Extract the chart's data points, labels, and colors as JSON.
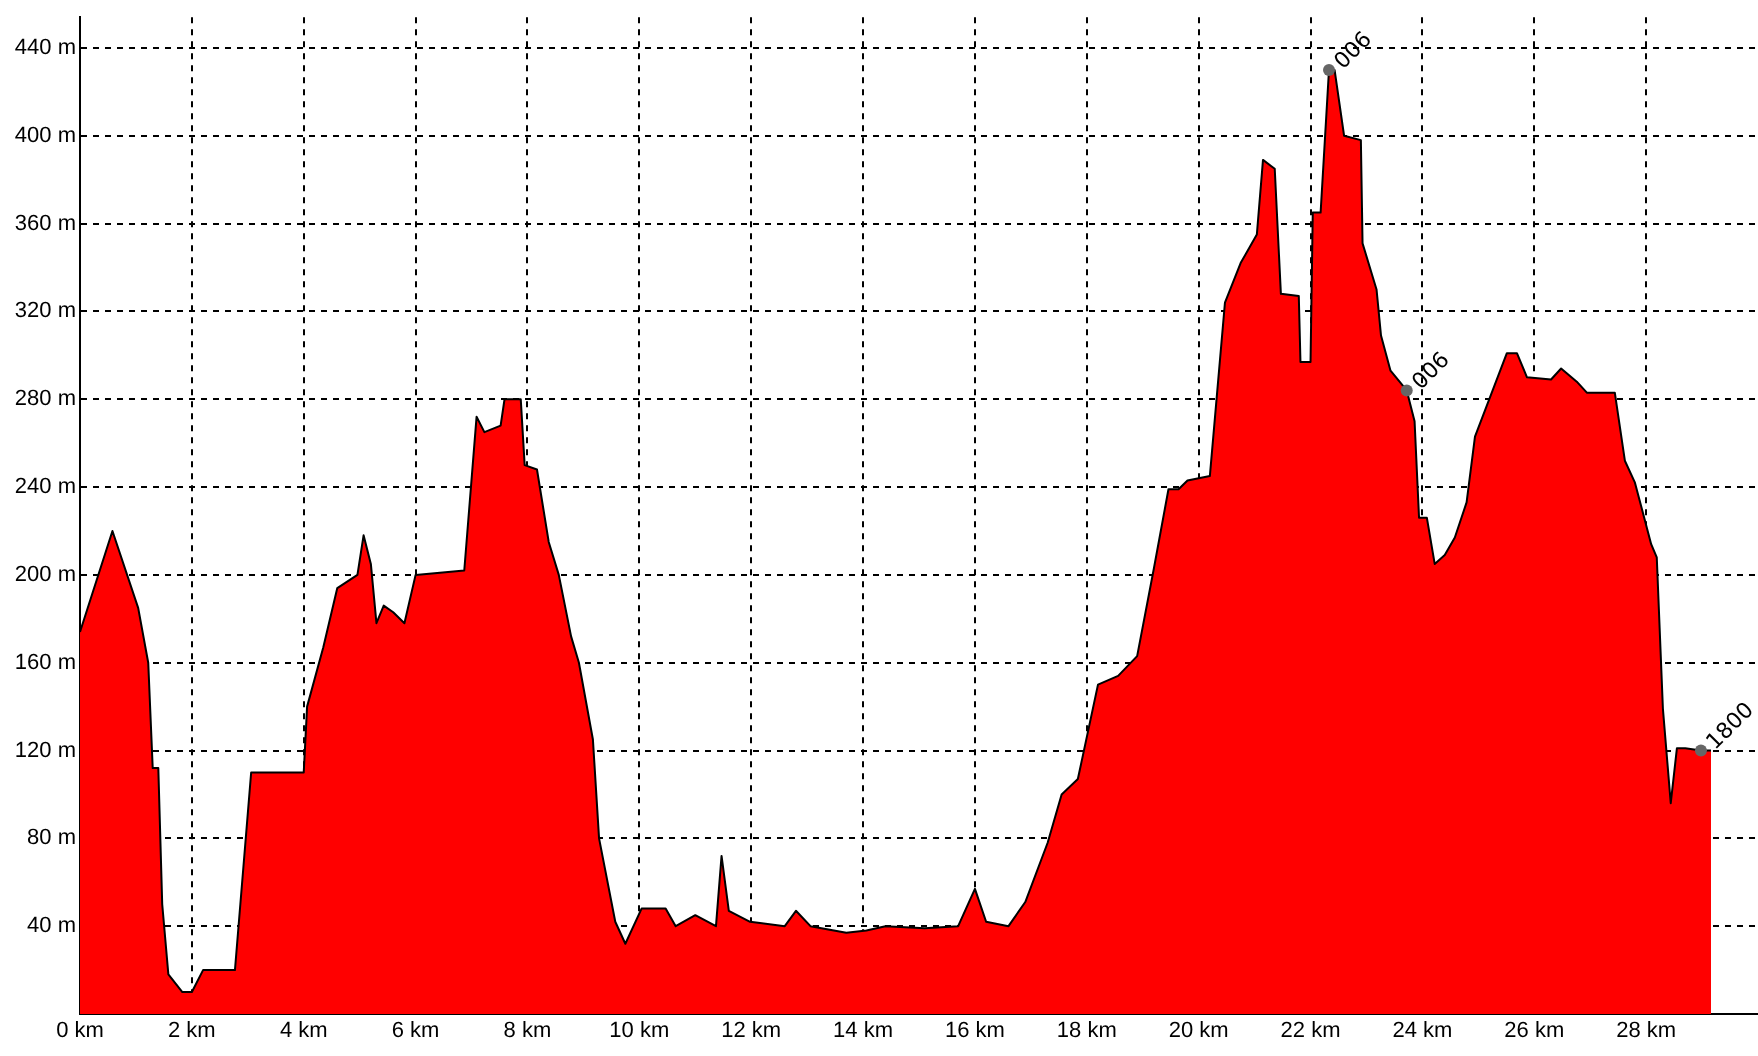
{
  "chart_data": {
    "type": "area",
    "x": [
      0,
      0.58,
      1.04,
      1.22,
      1.3,
      1.4,
      1.47,
      1.58,
      1.83,
      2.0,
      2.2,
      2.77,
      3.06,
      4.0,
      4.06,
      4.35,
      4.6,
      4.96,
      5.07,
      5.2,
      5.3,
      5.43,
      5.6,
      5.8,
      6.0,
      6.87,
      7.09,
      7.23,
      7.52,
      7.59,
      7.88,
      7.95,
      8.17,
      8.38,
      8.56,
      8.78,
      8.92,
      9.17,
      9.28,
      9.57,
      9.75,
      10.04,
      10.47,
      10.65,
      11.0,
      11.37,
      11.47,
      11.6,
      11.98,
      12.6,
      12.8,
      13.06,
      13.7,
      14.06,
      14.4,
      15.1,
      15.7,
      16.0,
      16.2,
      16.6,
      16.9,
      17.3,
      17.55,
      17.84,
      18.2,
      18.56,
      18.9,
      19.2,
      19.46,
      19.64,
      19.8,
      20.2,
      20.47,
      20.75,
      21.04,
      21.15,
      21.36,
      21.47,
      21.79,
      21.82,
      22.0,
      22.04,
      22.18,
      22.33,
      22.43,
      22.6,
      22.9,
      22.93,
      23.18,
      23.26,
      23.43,
      23.72,
      23.86,
      23.94,
      24.08,
      24.22,
      24.4,
      24.58,
      24.79,
      24.94,
      25.15,
      25.51,
      25.69,
      25.87,
      26.3,
      26.48,
      26.76,
      26.94,
      27.44,
      27.62,
      27.8,
      28.09,
      28.19,
      28.3,
      28.44,
      28.55,
      28.7,
      28.98,
      29.16
    ],
    "series": [
      {
        "color": "#ff0000",
        "values": [
          174,
          220,
          185,
          160,
          112,
          112,
          50,
          18,
          10,
          10,
          20,
          20,
          110,
          110,
          140,
          167,
          194,
          200,
          218,
          205,
          178,
          186,
          183,
          178,
          200,
          202,
          272,
          265,
          268,
          280,
          280,
          250,
          248,
          215,
          200,
          172,
          160,
          125,
          80,
          42,
          32,
          48,
          48,
          40,
          45,
          40,
          72,
          47,
          42,
          40,
          47,
          40,
          37,
          38,
          40,
          39,
          40,
          57,
          42,
          40,
          51,
          78,
          100,
          107,
          150,
          154,
          163,
          203,
          239,
          239,
          243,
          245,
          324,
          342,
          355,
          389,
          385,
          328,
          327,
          297,
          297,
          365,
          365,
          430,
          430,
          400,
          398,
          351,
          330,
          309,
          293,
          284,
          270,
          226,
          226,
          205,
          209,
          217,
          233,
          263,
          277,
          301,
          301,
          290,
          289,
          294,
          288,
          283,
          283,
          252,
          242,
          214,
          208,
          139,
          96,
          121,
          121,
          120,
          120
        ]
      }
    ],
    "xlim": [
      0,
      30
    ],
    "ylim": [
      0,
      454
    ],
    "xticks": [
      {
        "value": 0,
        "label": "0 km"
      },
      {
        "value": 2,
        "label": "2 km"
      },
      {
        "value": 4,
        "label": "4 km"
      },
      {
        "value": 6,
        "label": "6 km"
      },
      {
        "value": 8,
        "label": "8 km"
      },
      {
        "value": 10,
        "label": "10 km"
      },
      {
        "value": 12,
        "label": "12 km"
      },
      {
        "value": 14,
        "label": "14 km"
      },
      {
        "value": 16,
        "label": "16 km"
      },
      {
        "value": 18,
        "label": "18 km"
      },
      {
        "value": 20,
        "label": "20 km"
      },
      {
        "value": 22,
        "label": "22 km"
      },
      {
        "value": 24,
        "label": "24 km"
      },
      {
        "value": 26,
        "label": "26 km"
      },
      {
        "value": 28,
        "label": "28 km"
      }
    ],
    "yticks": [
      {
        "value": 0,
        "label": null
      },
      {
        "value": 40,
        "label": "40 m"
      },
      {
        "value": 80,
        "label": "80 m"
      },
      {
        "value": 120,
        "label": "120 m"
      },
      {
        "value": 160,
        "label": "160 m"
      },
      {
        "value": 200,
        "label": "200 m"
      },
      {
        "value": 240,
        "label": "240 m"
      },
      {
        "value": 280,
        "label": "280 m"
      },
      {
        "value": 320,
        "label": "320 m"
      },
      {
        "value": 360,
        "label": "360 m"
      },
      {
        "value": 400,
        "label": "400 m"
      },
      {
        "value": 440,
        "label": "440 m"
      }
    ],
    "grid": true,
    "annotations": [
      {
        "text": "006",
        "x": 22.33,
        "y": 430
      },
      {
        "text": "006",
        "x": 23.72,
        "y": 284
      },
      {
        "text": "1800",
        "x": 28.98,
        "y": 120
      }
    ]
  }
}
